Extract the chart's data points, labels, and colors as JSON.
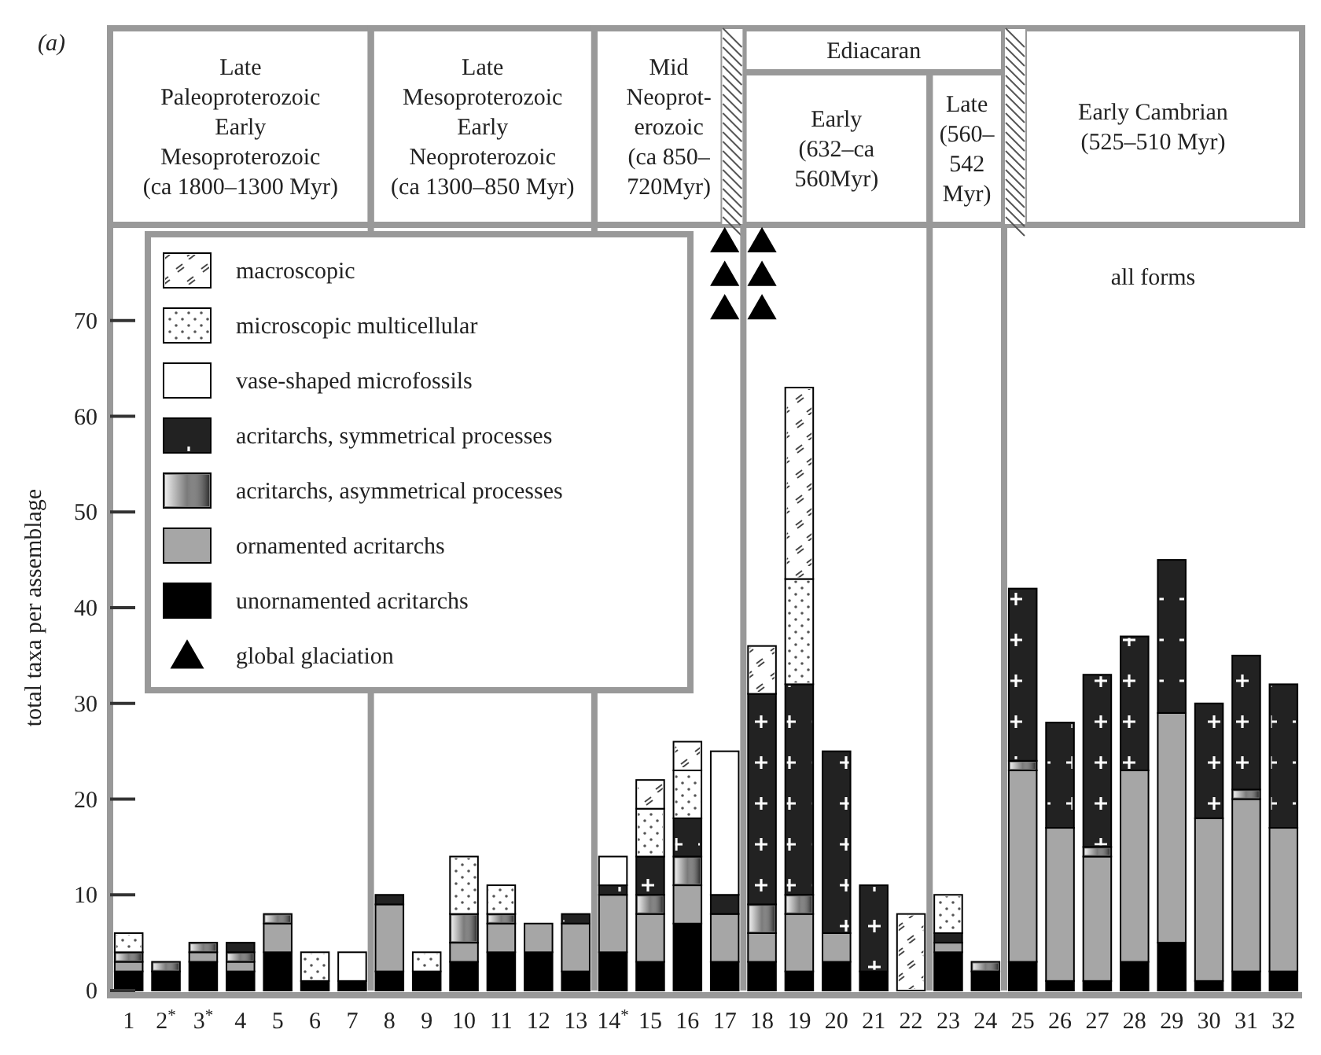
{
  "chart_data": {
    "type": "bar",
    "stacked": true,
    "ylabel": "total taxa per assemblage",
    "categories": [
      "1",
      "2$^{*}$",
      "3$^{*}$",
      "4",
      "5",
      "6",
      "7",
      "8",
      "9",
      "10",
      "11",
      "12",
      "13",
      "14$^{*}$",
      "15",
      "16",
      "17",
      "18",
      "19",
      "20",
      "21",
      "22",
      "23",
      "24",
      "25",
      "26",
      "27",
      "28",
      "29",
      "30",
      "31",
      "32"
    ],
    "ylim": [
      0,
      80
    ],
    "yticks": [
      0,
      10,
      20,
      30,
      40,
      50,
      60,
      70
    ],
    "legend": "top left",
    "marker": "triangle",
    "series": [
      {
        "name": "unornamented acritarchs",
        "color": "#000000",
        "values": [
          2,
          2,
          3,
          2,
          4,
          1,
          1,
          2,
          2,
          3,
          4,
          4,
          2,
          4,
          3,
          7,
          3,
          3,
          2,
          3,
          2,
          null,
          4,
          2,
          3,
          1,
          1,
          3,
          5,
          1,
          2,
          2
        ]
      },
      {
        "name": "ornamented acritarchs",
        "color": "#a6a6a6",
        "values": [
          1,
          null,
          1,
          1,
          3,
          null,
          null,
          7,
          null,
          2,
          3,
          3,
          5,
          6,
          5,
          4,
          5,
          3,
          6,
          3,
          null,
          null,
          1,
          null,
          20,
          16,
          13,
          20,
          24,
          17,
          18,
          15
        ]
      },
      {
        "name": "acritarchs, asymmetrical processes",
        "color": "#7a7a7a",
        "values": [
          1,
          1,
          1,
          1,
          1,
          null,
          null,
          null,
          null,
          3,
          1,
          null,
          null,
          null,
          2,
          3,
          null,
          3,
          2,
          null,
          null,
          null,
          null,
          1,
          1,
          null,
          1,
          null,
          null,
          null,
          1,
          null
        ]
      },
      {
        "name": "acritarchs, symmetrical processes",
        "color": "#222222",
        "values": [
          null,
          null,
          null,
          1,
          null,
          null,
          null,
          1,
          null,
          null,
          null,
          null,
          1,
          1,
          4,
          4,
          2,
          22,
          22,
          19,
          9,
          null,
          1,
          null,
          18,
          11,
          18,
          14,
          16,
          12,
          14,
          15
        ]
      },
      {
        "name": "vase-shaped microfossils",
        "color": "#ffffff",
        "values": [
          null,
          null,
          null,
          null,
          null,
          null,
          3,
          null,
          null,
          null,
          null,
          null,
          null,
          3,
          null,
          null,
          15,
          null,
          null,
          null,
          null,
          null,
          null,
          null,
          null,
          null,
          null,
          null,
          null,
          null,
          null,
          null
        ]
      },
      {
        "name": "microscopic multicellular",
        "color": "#ffffff",
        "values": [
          2,
          null,
          null,
          null,
          null,
          3,
          null,
          null,
          2,
          6,
          3,
          null,
          null,
          null,
          5,
          5,
          null,
          null,
          11,
          null,
          null,
          null,
          4,
          null,
          null,
          null,
          null,
          null,
          null,
          null,
          null,
          null
        ]
      },
      {
        "name": "macroscopic",
        "color": "#ffffff",
        "values": [
          null,
          null,
          null,
          null,
          null,
          null,
          null,
          null,
          null,
          null,
          null,
          null,
          null,
          null,
          3,
          3,
          null,
          5,
          20,
          null,
          null,
          8,
          null,
          null,
          null,
          null,
          null,
          null,
          null,
          null,
          null,
          null
        ]
      },
      {
        "name": "global glaciation",
        "type": "scatter",
        "color": "#000000",
        "x": [
          "17",
          "17",
          "17",
          "18",
          "18",
          "18"
        ],
        "values": [
          78,
          74.5,
          71,
          78,
          74.5,
          71
        ]
      }
    ],
    "annotations": [
      "(a)",
      "all forms",
      "Late\nPaleoproterozoic\nEarly\nMesoproterozoic\n(ca 1800–1300 Myr)",
      "Late\nMesoproterozoic\nEarly\nNeoproterozoic\n(ca 1300–850 Myr)",
      "Mid\nNeoprot-\nerozoic\n(ca 850–\n720Myr)",
      "Ediacaran",
      "Early\n(632–ca\n560Myr)",
      "Late\n(560–\n542\nMyr)",
      "Early Cambrian\n(525–510 Myr)"
    ]
  }
}
